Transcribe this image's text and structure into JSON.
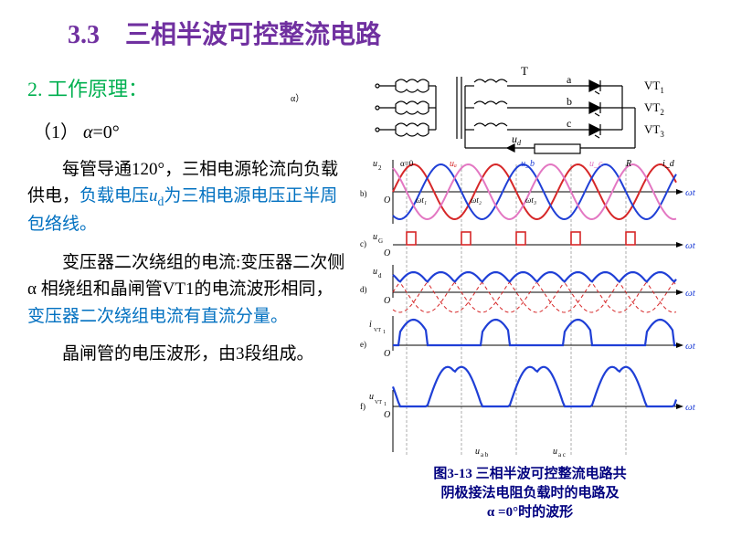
{
  "title": "3.3　三相半波可控整流电路",
  "principle": "2. 工作原理：",
  "case": "（1）",
  "case_alpha": "α",
  "case_eq": "=0°",
  "p1_a": "每管导通120°，三相电源轮流向负载供电，",
  "p1_b": "负载电压",
  "p1_ud": "u",
  "p1_ud_sub": "d",
  "p1_c": "为三相电源电压正半周包络线。",
  "p2_a": "变压器二次绕组的电流:变压器二次侧α 相绕组和晶闸管VT1的电流波形相同，",
  "p2_b": "变压器二次绕组电流有直流分量。",
  "p3": "晶闸管的电压波形，由3段组成。",
  "caption_l1": "图3-13 三相半波可控整流电路共",
  "caption_l2": "阴极接法电阻负载时的电路及",
  "caption_l3": "α =0°时的波形",
  "alpha_only": "α）",
  "row_b": "b)",
  "row_c": "c)",
  "row_d": "d)",
  "row_e": "e)",
  "row_f": "f)",
  "circuit": {
    "T": "T",
    "a": "a",
    "b": "b",
    "c": "c",
    "VT1": "VT",
    "VT1s": "1",
    "VT2": "VT",
    "VT2s": "2",
    "VT3": "VT",
    "VT3s": "3",
    "ud": "u",
    "uds": "d",
    "R": "R"
  },
  "wave": {
    "u2": "u",
    "u2s": "2",
    "ua": "u",
    "uas": "a",
    "ub": "u",
    "ubs": "b",
    "uc": "u",
    "ucs": "c",
    "id": "i",
    "ids": "d",
    "alpha0": "α=0",
    "R": "R",
    "O": "O",
    "wt": "ω",
    "t": "t",
    "wt1": "ω",
    "t1": "t",
    "t1s": "1",
    "wt2": "ω",
    "t2": "t",
    "t2s": "2",
    "wt3": "ω",
    "t3": "t",
    "t3s": "3",
    "uG": "u",
    "uGs": "G",
    "ud": "u",
    "uds": "d",
    "ivt1": "i",
    "ivt1s": "VT",
    "ivt1n": "1",
    "uvt1": "u",
    "uvt1s": "VT",
    "uvt1n": "1",
    "uab": "u",
    "uabs": "a b",
    "uac": "u",
    "uacs": "a c"
  },
  "colors": {
    "red": "#d62728",
    "blue": "#1f3fd6",
    "pink": "#e377c2",
    "dash": "#d62728",
    "grid": "#999999"
  },
  "chart": {
    "period": 90,
    "amp_u2": 30,
    "amp_ud": 22,
    "i_height": 28,
    "pulse_h": 14,
    "uvt_amp": 45
  }
}
